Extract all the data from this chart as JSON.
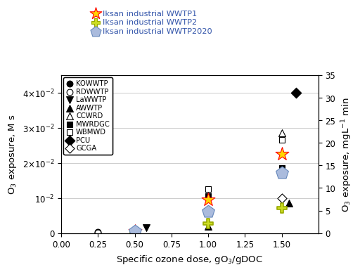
{
  "xlabel": "Specific ozone dose, gO$_3$/gDOC",
  "ylabel_left": "O$_3$ exposure, M s",
  "ylabel_right": "O$_3$ exposure, mgL$^{-1}$ min",
  "xlim": [
    0.0,
    1.75
  ],
  "ylim_left": [
    0,
    0.045
  ],
  "ylim_right": [
    0,
    35
  ],
  "xticks": [
    0.0,
    0.25,
    0.5,
    0.75,
    1.0,
    1.25,
    1.5
  ],
  "ytick_vals": [
    0,
    0.01,
    0.02,
    0.03,
    0.04
  ],
  "ytick_labels": [
    "0",
    "10$^{-2}$",
    "2×10$^{-2}$",
    "3×10$^{-2}$",
    "4×10$^{-2}$"
  ],
  "yticks_right": [
    0,
    5,
    10,
    15,
    20,
    25,
    30,
    35
  ],
  "series": {
    "KOWWTP": {
      "x": [
        0.25
      ],
      "y": [
        0.00025
      ],
      "marker": "o",
      "filled": true,
      "size": 40
    },
    "RDWWTP": {
      "x": [
        0.25
      ],
      "y": [
        0.00015
      ],
      "marker": "o",
      "filled": false,
      "size": 40
    },
    "LaWWTP": {
      "x": [
        0.58
      ],
      "y": [
        0.0015
      ],
      "marker": "v",
      "filled": true,
      "size": 50
    },
    "AWWTP": {
      "x": [
        1.0,
        1.55
      ],
      "y": [
        0.002,
        0.0085
      ],
      "marker": "^",
      "filled": true,
      "size": 50
    },
    "CCWRD": {
      "x": [
        1.5
      ],
      "y": [
        0.0285
      ],
      "marker": "^",
      "filled": false,
      "size": 50
    },
    "MWRDGC": {
      "x": [
        1.0,
        1.5
      ],
      "y": [
        0.0105,
        0.0185
      ],
      "marker": "s",
      "filled": true,
      "size": 40
    },
    "WBMWD": {
      "x": [
        1.0,
        1.5
      ],
      "y": [
        0.0125,
        0.0265
      ],
      "marker": "s",
      "filled": false,
      "size": 40
    },
    "PCU": {
      "x": [
        1.6
      ],
      "y": [
        0.04
      ],
      "marker": "D",
      "filled": true,
      "size": 55
    },
    "GCGA": {
      "x": [
        1.5
      ],
      "y": [
        0.01
      ],
      "marker": "D",
      "filled": false,
      "size": 45
    }
  },
  "iksan": {
    "WWTP1": {
      "x": [
        0.5,
        1.0,
        1.5
      ],
      "y": [
        0.0006,
        0.0095,
        0.0225
      ],
      "color": "#FFD700",
      "edgecolor": "#FF0000",
      "marker": "*",
      "size": 200,
      "lw": 0.8
    },
    "WWTP2": {
      "x": [
        0.5,
        1.0,
        1.5
      ],
      "y": [
        0.0004,
        0.0028,
        0.0072
      ],
      "color": "#CCDD22",
      "edgecolor": "#99AA00",
      "marker": "P",
      "size": 100,
      "lw": 1.2
    },
    "WWTP2020": {
      "x": [
        0.5,
        1.0,
        1.5
      ],
      "y": [
        0.00055,
        0.0062,
        0.0172
      ],
      "color": "#AABBDD",
      "edgecolor": "#6688BB",
      "marker": "p",
      "size": 180,
      "lw": 0.8
    }
  },
  "legend_top": [
    {
      "label": "Iksan industrial WWTP1",
      "color": "#FFD700",
      "edgecolor": "#FF0000",
      "marker": "*",
      "size": 160
    },
    {
      "label": "Iksan industrial WWTP2",
      "color": "#CCDD22",
      "edgecolor": "#99AA00",
      "marker": "P",
      "size": 80
    },
    {
      "label": "Iksan industrial WWTP2020",
      "color": "#AABBDD",
      "edgecolor": "#6688BB",
      "marker": "p",
      "size": 130
    }
  ],
  "legend_text_color": "#3355AA",
  "background_color": "#ffffff",
  "grid_color": "#cccccc"
}
